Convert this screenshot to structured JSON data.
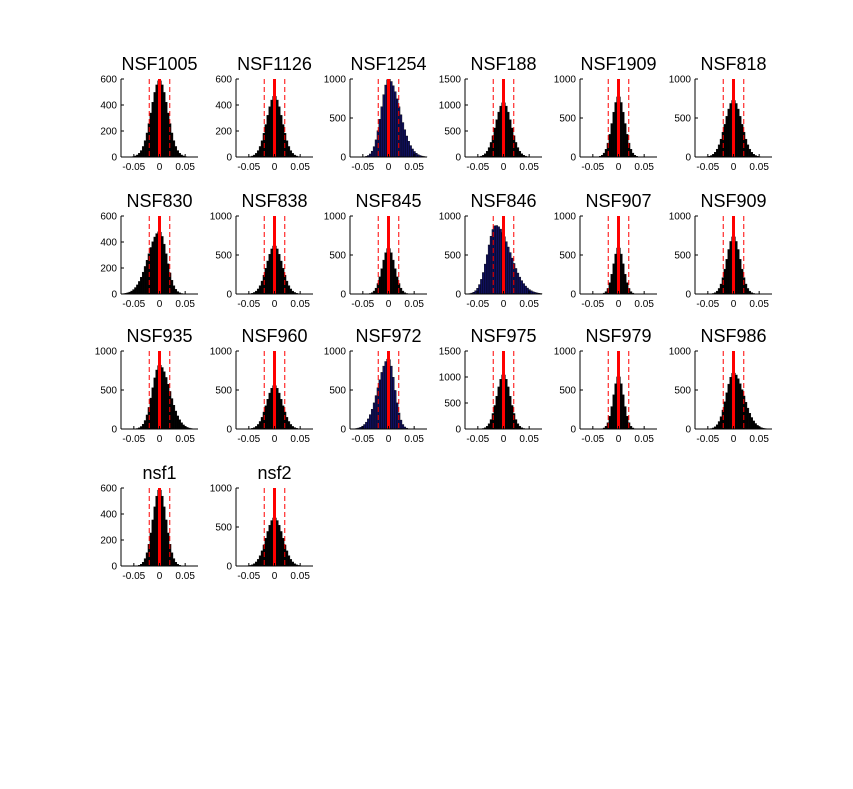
{
  "figure": {
    "background": "#ffffff",
    "bar_color_default": "#000000",
    "bar_color_alt": "#101060",
    "center_line_color": "#ff0000",
    "dashed_line_color": "#ff0000"
  },
  "chart_data": [
    {
      "type": "bar",
      "title": "NSF1005",
      "xlim": [
        -0.075,
        0.075
      ],
      "xticks": [
        "-0.05",
        "0",
        "0.05"
      ],
      "ylim": [
        0,
        600
      ],
      "yticks": [
        "0",
        "200",
        "400",
        "600"
      ],
      "mean": 0.0,
      "dashed": [
        -0.02,
        0.02
      ],
      "sigma": 0.016,
      "peak": 590,
      "skew": 0.0,
      "color": "#000000"
    },
    {
      "type": "bar",
      "title": "NSF1126",
      "xlim": [
        -0.075,
        0.075
      ],
      "xticks": [
        "-0.05",
        "0",
        "0.05"
      ],
      "ylim": [
        0,
        600
      ],
      "yticks": [
        "0",
        "200",
        "400",
        "600"
      ],
      "mean": 0.0,
      "dashed": [
        -0.02,
        0.02
      ],
      "sigma": 0.015,
      "peak": 470,
      "skew": 0.0,
      "color": "#000000"
    },
    {
      "type": "bar",
      "title": "NSF1254",
      "xlim": [
        -0.075,
        0.075
      ],
      "xticks": [
        "-0.05",
        "0",
        "0.05"
      ],
      "ylim": [
        0,
        1000
      ],
      "yticks": [
        "0",
        "500",
        "1000"
      ],
      "mean": 0.0,
      "dashed": [
        -0.02,
        0.02
      ],
      "sigma": 0.018,
      "peak": 1000,
      "skew": -0.004,
      "color": "#101060"
    },
    {
      "type": "bar",
      "title": "NSF188",
      "xlim": [
        -0.075,
        0.075
      ],
      "xticks": [
        "-0.05",
        "0",
        "0.05"
      ],
      "ylim": [
        0,
        1500
      ],
      "yticks": [
        "0",
        "500",
        "1000",
        "1500"
      ],
      "mean": 0.0,
      "dashed": [
        -0.02,
        0.02
      ],
      "sigma": 0.015,
      "peak": 1050,
      "skew": 0.0,
      "color": "#000000"
    },
    {
      "type": "bar",
      "title": "NSF1909",
      "xlim": [
        -0.075,
        0.075
      ],
      "xticks": [
        "-0.05",
        "0",
        "0.05"
      ],
      "ylim": [
        0,
        1000
      ],
      "yticks": [
        "0",
        "500",
        "1000"
      ],
      "mean": 0.0,
      "dashed": [
        -0.02,
        0.02
      ],
      "sigma": 0.012,
      "peak": 780,
      "skew": 0.0,
      "color": "#000000"
    },
    {
      "type": "bar",
      "title": "NSF818",
      "xlim": [
        -0.075,
        0.075
      ],
      "xticks": [
        "-0.05",
        "0",
        "0.05"
      ],
      "ylim": [
        0,
        1000
      ],
      "yticks": [
        "0",
        "500",
        "1000"
      ],
      "mean": 0.0,
      "dashed": [
        -0.02,
        0.02
      ],
      "sigma": 0.016,
      "peak": 730,
      "skew": 0.0,
      "color": "#000000"
    },
    {
      "type": "bar",
      "title": "NSF830",
      "xlim": [
        -0.075,
        0.075
      ],
      "xticks": [
        "-0.05",
        "0",
        "0.05"
      ],
      "ylim": [
        0,
        600
      ],
      "yticks": [
        "0",
        "200",
        "400",
        "600"
      ],
      "mean": 0.0,
      "dashed": [
        -0.02,
        0.02
      ],
      "sigma": 0.018,
      "peak": 480,
      "skew": 0.004,
      "color": "#000000"
    },
    {
      "type": "bar",
      "title": "NSF838",
      "xlim": [
        -0.075,
        0.075
      ],
      "xticks": [
        "-0.05",
        "0",
        "0.05"
      ],
      "ylim": [
        0,
        1000
      ],
      "yticks": [
        "0",
        "500",
        "1000"
      ],
      "mean": 0.0,
      "dashed": [
        -0.02,
        0.02
      ],
      "sigma": 0.015,
      "peak": 620,
      "skew": 0.0,
      "color": "#000000"
    },
    {
      "type": "bar",
      "title": "NSF845",
      "xlim": [
        -0.075,
        0.075
      ],
      "xticks": [
        "-0.05",
        "0",
        "0.05"
      ],
      "ylim": [
        0,
        1000
      ],
      "yticks": [
        "0",
        "500",
        "1000"
      ],
      "mean": 0.0,
      "dashed": [
        -0.02,
        0.02
      ],
      "sigma": 0.012,
      "peak": 590,
      "skew": 0.0,
      "color": "#000000"
    },
    {
      "type": "bar",
      "title": "NSF846",
      "xlim": [
        -0.075,
        0.075
      ],
      "xticks": [
        "-0.05",
        "0",
        "0.05"
      ],
      "ylim": [
        0,
        1000
      ],
      "yticks": [
        "0",
        "500",
        "1000"
      ],
      "mean": -0.015,
      "dashed": [
        -0.02,
        0.02
      ],
      "sigma": 0.022,
      "peak": 880,
      "skew": -0.006,
      "color": "#101060"
    },
    {
      "type": "bar",
      "title": "NSF907",
      "xlim": [
        -0.075,
        0.075
      ],
      "xticks": [
        "-0.05",
        "0",
        "0.05"
      ],
      "ylim": [
        0,
        1000
      ],
      "yticks": [
        "0",
        "500",
        "1000"
      ],
      "mean": 0.0,
      "dashed": [
        -0.02,
        0.02
      ],
      "sigma": 0.01,
      "peak": 600,
      "skew": 0.0,
      "color": "#000000"
    },
    {
      "type": "bar",
      "title": "NSF909",
      "xlim": [
        -0.075,
        0.075
      ],
      "xticks": [
        "-0.05",
        "0",
        "0.05"
      ],
      "ylim": [
        0,
        1000
      ],
      "yticks": [
        "0",
        "500",
        "1000"
      ],
      "mean": 0.0,
      "dashed": [
        -0.02,
        0.02
      ],
      "sigma": 0.013,
      "peak": 740,
      "skew": 0.0,
      "color": "#000000"
    },
    {
      "type": "bar",
      "title": "NSF935",
      "xlim": [
        -0.075,
        0.075
      ],
      "xticks": [
        "-0.05",
        "0",
        "0.05"
      ],
      "ylim": [
        0,
        1000
      ],
      "yticks": [
        "0",
        "500",
        "1000"
      ],
      "mean": 0.0,
      "dashed": [
        -0.02,
        0.02
      ],
      "sigma": 0.017,
      "peak": 820,
      "skew": -0.003,
      "color": "#000000"
    },
    {
      "type": "bar",
      "title": "NSF960",
      "xlim": [
        -0.075,
        0.075
      ],
      "xticks": [
        "-0.05",
        "0",
        "0.05"
      ],
      "ylim": [
        0,
        1000
      ],
      "yticks": [
        "0",
        "500",
        "1000"
      ],
      "mean": 0.0,
      "dashed": [
        -0.02,
        0.02
      ],
      "sigma": 0.015,
      "peak": 560,
      "skew": 0.0,
      "color": "#000000"
    },
    {
      "type": "bar",
      "title": "NSF972",
      "xlim": [
        -0.075,
        0.075
      ],
      "xticks": [
        "-0.05",
        "0",
        "0.05"
      ],
      "ylim": [
        0,
        1000
      ],
      "yticks": [
        "0",
        "500",
        "1000"
      ],
      "mean": 0.0,
      "dashed": [
        -0.02,
        0.02
      ],
      "sigma": 0.016,
      "peak": 900,
      "skew": 0.004,
      "color": "#101060"
    },
    {
      "type": "bar",
      "title": "NSF975",
      "xlim": [
        -0.075,
        0.075
      ],
      "xticks": [
        "-0.05",
        "0",
        "0.05"
      ],
      "ylim": [
        0,
        1500
      ],
      "yticks": [
        "0",
        "500",
        "1000",
        "1500"
      ],
      "mean": 0.0,
      "dashed": [
        -0.02,
        0.02
      ],
      "sigma": 0.013,
      "peak": 1050,
      "skew": 0.0,
      "color": "#000000"
    },
    {
      "type": "bar",
      "title": "NSF979",
      "xlim": [
        -0.075,
        0.075
      ],
      "xticks": [
        "-0.05",
        "0",
        "0.05"
      ],
      "ylim": [
        0,
        1000
      ],
      "yticks": [
        "0",
        "500",
        "1000"
      ],
      "mean": 0.0,
      "dashed": [
        -0.02,
        0.02
      ],
      "sigma": 0.01,
      "peak": 680,
      "skew": 0.0,
      "color": "#000000"
    },
    {
      "type": "bar",
      "title": "NSF986",
      "xlim": [
        -0.075,
        0.075
      ],
      "xticks": [
        "-0.05",
        "0",
        "0.05"
      ],
      "ylim": [
        0,
        1000
      ],
      "yticks": [
        "0",
        "500",
        "1000"
      ],
      "mean": 0.0,
      "dashed": [
        -0.02,
        0.02
      ],
      "sigma": 0.017,
      "peak": 720,
      "skew": -0.003,
      "color": "#000000"
    },
    {
      "type": "bar",
      "title": "nsf1",
      "xlim": [
        -0.075,
        0.075
      ],
      "xticks": [
        "-0.05",
        "0",
        "0.05"
      ],
      "ylim": [
        0,
        600
      ],
      "yticks": [
        "0",
        "200",
        "400",
        "600"
      ],
      "mean": 0.0,
      "dashed": [
        -0.02,
        0.02
      ],
      "sigma": 0.013,
      "peak": 590,
      "skew": 0.0,
      "color": "#000000"
    },
    {
      "type": "bar",
      "title": "nsf2",
      "xlim": [
        -0.075,
        0.075
      ],
      "xticks": [
        "-0.05",
        "0",
        "0.05"
      ],
      "ylim": [
        0,
        1000
      ],
      "yticks": [
        "0",
        "500",
        "1000"
      ],
      "mean": 0.0,
      "dashed": [
        -0.02,
        0.02
      ],
      "sigma": 0.016,
      "peak": 620,
      "skew": 0.0,
      "color": "#000000"
    }
  ]
}
